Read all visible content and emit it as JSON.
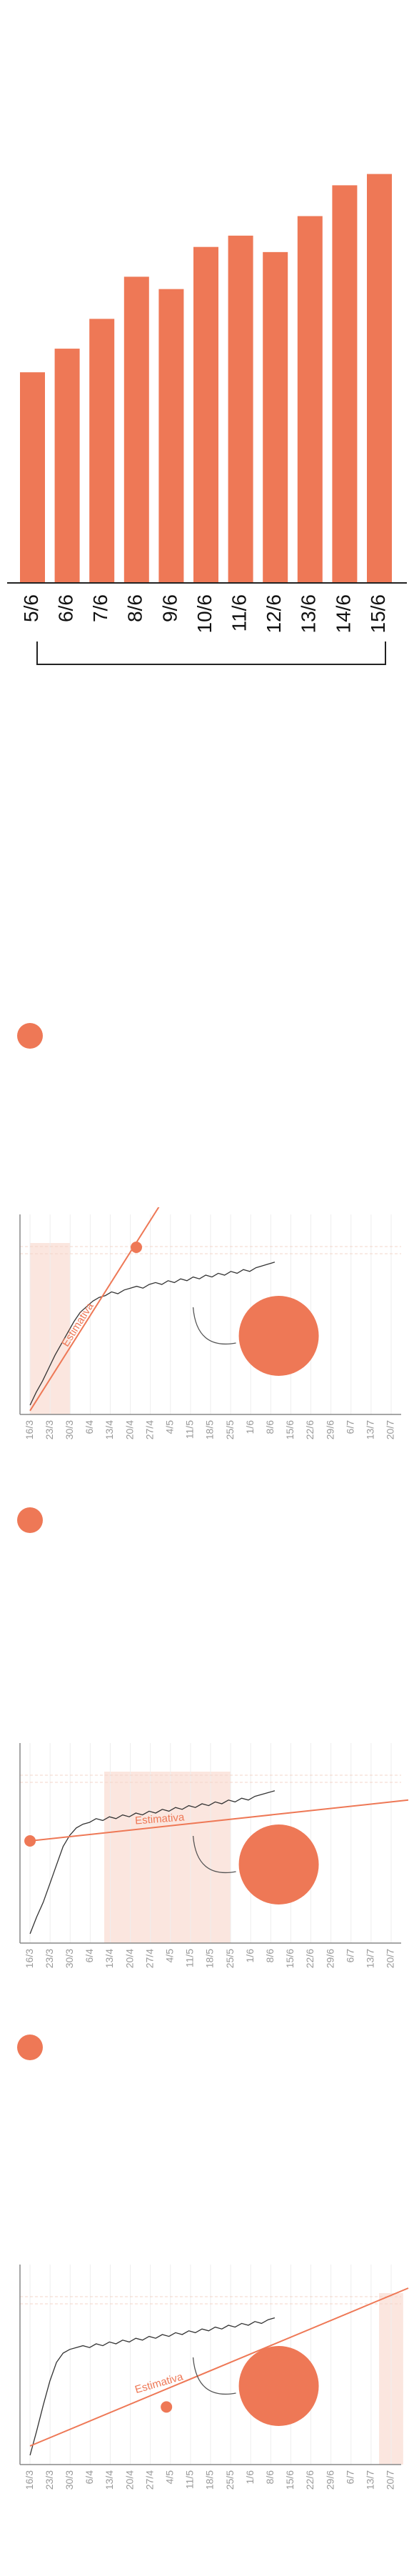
{
  "colors": {
    "accent": "#ee7856",
    "accent_soft": "#fbe6df",
    "line": "#333333",
    "axis": "#888888",
    "grid": "#eeeeee"
  },
  "chart_data": [
    {
      "type": "bar",
      "categories": [
        "5/6",
        "6/6",
        "7/6",
        "8/6",
        "9/6",
        "10/6",
        "11/6",
        "12/6",
        "13/6",
        "14/6",
        "15/6"
      ],
      "values": [
        205,
        228,
        257,
        298,
        286,
        327,
        338,
        322,
        357,
        387,
        398
      ],
      "ylim": [
        0,
        470
      ],
      "color": "#ee7856"
    },
    {
      "type": "line",
      "label_estimativa": "Estimativa",
      "x_ticks": [
        "16/3",
        "23/3",
        "30/3",
        "6/4",
        "13/4",
        "20/4",
        "27/4",
        "4/5",
        "11/5",
        "18/5",
        "25/5",
        "1/6",
        "8/6",
        "15/6",
        "22/6",
        "29/6",
        "6/7",
        "13/7",
        "20/7"
      ],
      "ylim": [
        0,
        100
      ],
      "shaded_range": [
        0,
        2
      ],
      "series_y": [
        5,
        12,
        18,
        25,
        32,
        38,
        44,
        50,
        55,
        58,
        61,
        63,
        64,
        66,
        65,
        67,
        68,
        69,
        68,
        70,
        71,
        70,
        72,
        71,
        73,
        72,
        74,
        73,
        75,
        74,
        76,
        75,
        77,
        76,
        78,
        77,
        79,
        80,
        81,
        82
      ],
      "estimativa": {
        "x0": 0.0,
        "y0": 2,
        "x1": 7.2,
        "y1": 125
      },
      "marker": {
        "x": 5.3,
        "y": 90
      }
    },
    {
      "type": "line",
      "label_estimativa": "Estimativa",
      "x_ticks": [
        "16/3",
        "23/3",
        "30/3",
        "6/4",
        "13/4",
        "20/4",
        "27/4",
        "4/5",
        "11/5",
        "18/5",
        "25/5",
        "1/6",
        "8/6",
        "15/6",
        "22/6",
        "29/6",
        "6/7",
        "13/7",
        "20/7"
      ],
      "ylim": [
        0,
        100
      ],
      "shaded_range": [
        3.7,
        10.0
      ],
      "series_y": [
        5,
        14,
        22,
        32,
        42,
        52,
        58,
        62,
        64,
        65,
        67,
        66,
        68,
        67,
        69,
        68,
        70,
        69,
        71,
        70,
        72,
        71,
        73,
        72,
        74,
        73,
        75,
        74,
        76,
        75,
        77,
        76,
        78,
        77,
        79,
        80,
        81,
        82
      ],
      "estimativa": {
        "x0": 0.0,
        "y0": 55,
        "x1": 27.0,
        "y1": 77
      },
      "marker": {
        "x": 0.0,
        "y": 55
      }
    },
    {
      "type": "line",
      "label_estimativa": "Estimativa",
      "x_ticks": [
        "16/3",
        "23/3",
        "30/3",
        "6/4",
        "13/4",
        "20/4",
        "27/4",
        "4/5",
        "11/5",
        "18/5",
        "25/5",
        "1/6",
        "8/6",
        "15/6",
        "22/6",
        "29/6",
        "6/7",
        "13/7",
        "20/7"
      ],
      "ylim": [
        0,
        100
      ],
      "shaded_range": [
        17.4,
        18.6
      ],
      "series_y": [
        5,
        18,
        32,
        45,
        55,
        60,
        62,
        63,
        64,
        63,
        65,
        64,
        66,
        65,
        67,
        66,
        68,
        67,
        69,
        68,
        70,
        69,
        71,
        70,
        72,
        71,
        73,
        72,
        74,
        73,
        75,
        74,
        76,
        75,
        77,
        76,
        78,
        79
      ],
      "estimativa": {
        "x0": 0.0,
        "y0": 10,
        "x1": 27.0,
        "y1": 95
      },
      "marker": {
        "x": 6.8,
        "y": 31
      }
    }
  ]
}
